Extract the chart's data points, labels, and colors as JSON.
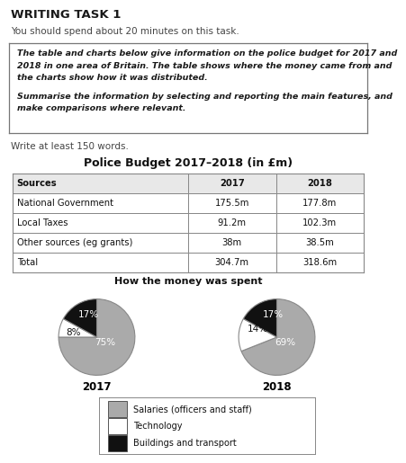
{
  "title_text": "WRITING TASK 1",
  "subtitle_text": "You should spend about 20 minutes on this task.",
  "box_line1": "The table and charts below give information on the police budget for 2017 and",
  "box_line2": "2018 in one area of Britain. The table shows where the money came from and",
  "box_line3": "the charts show how it was distributed.",
  "box_line4": "Summarise the information by selecting and reporting the main features, and",
  "box_line5": "make comparisons where relevant.",
  "write_text": "Write at least 150 words.",
  "table_title": "Police Budget 2017–2018 (in £m)",
  "table_headers": [
    "Sources",
    "2017",
    "2018"
  ],
  "table_rows": [
    [
      "National Government",
      "175.5m",
      "177.8m"
    ],
    [
      "Local Taxes",
      "91.2m",
      "102.3m"
    ],
    [
      "Other sources (eg grants)",
      "38m",
      "38.5m"
    ],
    [
      "Total",
      "304.7m",
      "318.6m"
    ]
  ],
  "pie_title": "How the money was spent",
  "pie2017_values": [
    75,
    8,
    17
  ],
  "pie2018_values": [
    69,
    14,
    17
  ],
  "pie_colors": [
    "#aaaaaa",
    "#ffffff",
    "#111111"
  ],
  "pie2017_label": "2017",
  "pie2018_label": "2018",
  "legend_items": [
    "Salaries (officers and staff)",
    "Technology",
    "Buildings and transport"
  ],
  "legend_colors": [
    "#aaaaaa",
    "#ffffff",
    "#111111"
  ],
  "bg_color": "#ffffff"
}
